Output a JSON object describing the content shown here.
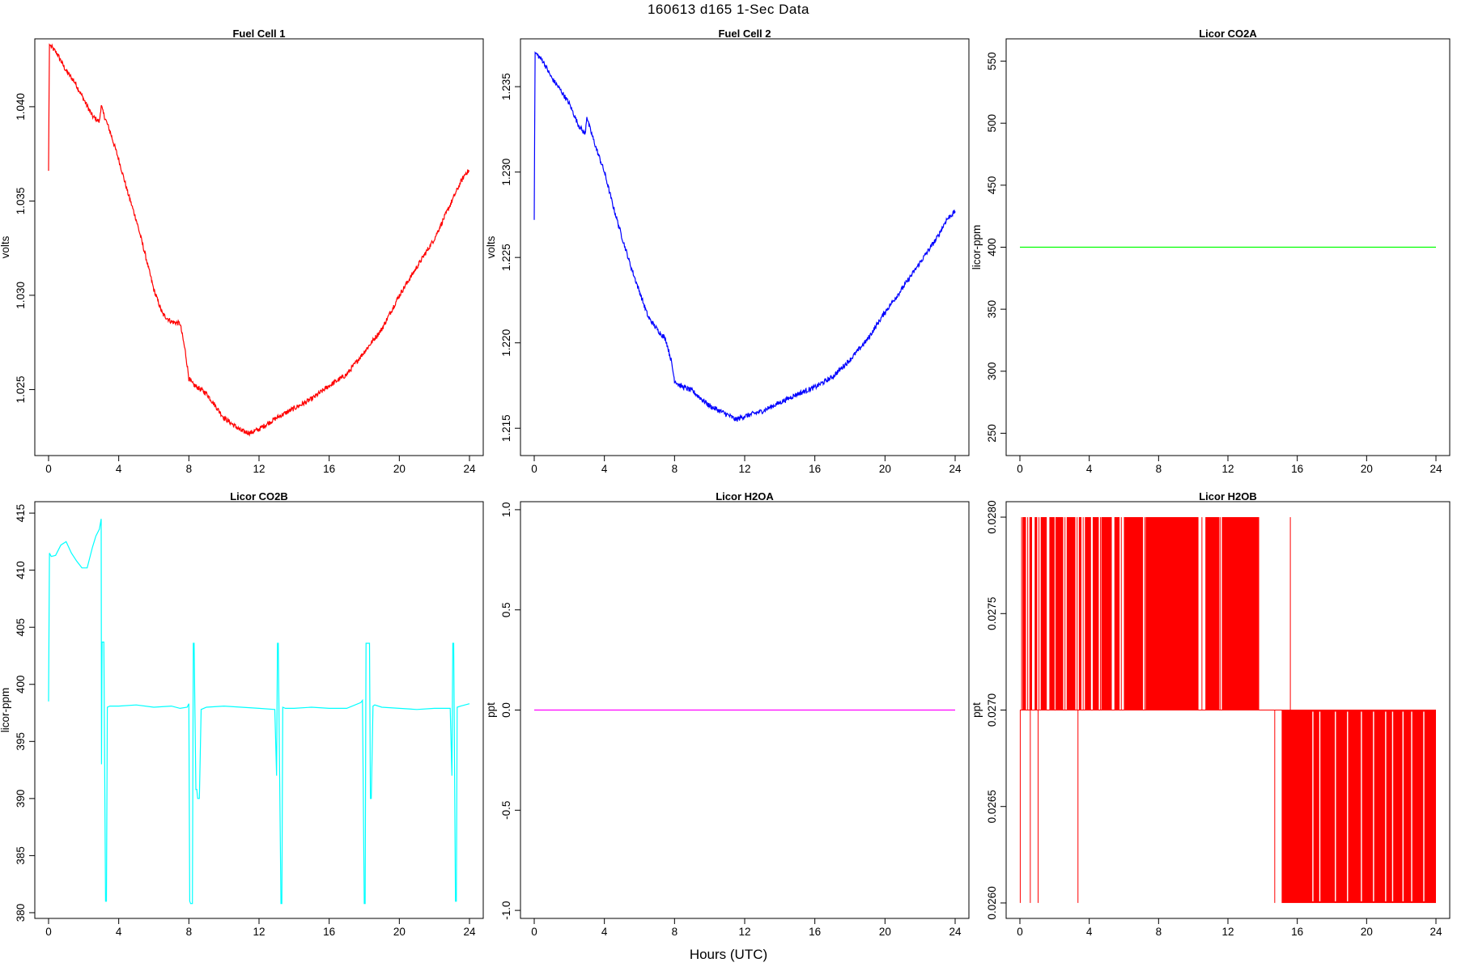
{
  "figure": {
    "title": "160613   d165   1-Sec Data",
    "xlabel": "Hours (UTC)"
  },
  "chart_data": [
    {
      "type": "line",
      "title": "Fuel Cell 1",
      "xlabel": "",
      "ylabel": "volts",
      "color": "#ff0000",
      "xlim": [
        0,
        24
      ],
      "ylim": [
        1.0215,
        1.0436
      ],
      "xticks": [
        0,
        4,
        8,
        12,
        16,
        20,
        24
      ],
      "yticks": [
        1.025,
        1.03,
        1.035,
        1.04
      ],
      "ytick_labels": [
        "1.025",
        "1.030",
        "1.035",
        "1.040"
      ],
      "series": [
        {
          "x": [
            0,
            0.05,
            0.5,
            1,
            1.5,
            2,
            2.5,
            2.9,
            3.0,
            3.1,
            3.5,
            4,
            4.5,
            5,
            5.5,
            6,
            6.5,
            7,
            7.5,
            7.8,
            8,
            8.2,
            9,
            10,
            11,
            11.5,
            12,
            13,
            14,
            15,
            16,
            17,
            18,
            19,
            20,
            21,
            22,
            23,
            23.5,
            23.8,
            24
          ],
          "y": [
            1.0366,
            1.0433,
            1.0428,
            1.0419,
            1.0413,
            1.0404,
            1.0395,
            1.0392,
            1.0401,
            1.0397,
            1.0387,
            1.0372,
            1.0355,
            1.034,
            1.0322,
            1.0303,
            1.029,
            1.0286,
            1.0285,
            1.027,
            1.0256,
            1.0253,
            1.0248,
            1.0235,
            1.0228,
            1.0227,
            1.0229,
            1.0235,
            1.024,
            1.0245,
            1.0252,
            1.0258,
            1.027,
            1.0282,
            1.03,
            1.0315,
            1.033,
            1.035,
            1.036,
            1.0365,
            1.0366
          ]
        }
      ]
    },
    {
      "type": "line",
      "title": "Fuel Cell 2",
      "xlabel": "",
      "ylabel": "volts",
      "color": "#0000ff",
      "xlim": [
        0,
        24
      ],
      "ylim": [
        1.2134,
        1.2378
      ],
      "xticks": [
        0,
        4,
        8,
        12,
        16,
        20,
        24
      ],
      "yticks": [
        1.215,
        1.22,
        1.225,
        1.23,
        1.235
      ],
      "ytick_labels": [
        "1.215",
        "1.220",
        "1.225",
        "1.230",
        "1.235"
      ],
      "series": [
        {
          "x": [
            0,
            0.05,
            0.5,
            1,
            1.5,
            2,
            2.5,
            2.9,
            3.0,
            3.1,
            3.5,
            4,
            4.5,
            5,
            5.5,
            6,
            6.5,
            7,
            7.5,
            7.8,
            8,
            8.3,
            9,
            10,
            11,
            11.5,
            12,
            13,
            14,
            15,
            16,
            17,
            18,
            19,
            20,
            21,
            22,
            23,
            23.5,
            24
          ],
          "y": [
            1.2272,
            1.237,
            1.2365,
            1.2355,
            1.2348,
            1.234,
            1.2328,
            1.2322,
            1.2333,
            1.2328,
            1.2315,
            1.23,
            1.228,
            1.2262,
            1.2245,
            1.223,
            1.2215,
            1.2208,
            1.2202,
            1.219,
            1.2178,
            1.2175,
            1.2172,
            1.2163,
            1.2158,
            1.2155,
            1.2157,
            1.216,
            1.2165,
            1.217,
            1.2174,
            1.218,
            1.219,
            1.2202,
            1.2218,
            1.2232,
            1.2247,
            1.2262,
            1.2272,
            1.2277
          ]
        }
      ]
    },
    {
      "type": "line",
      "title": "Licor CO2A",
      "xlabel": "",
      "ylabel": "licor-ppm",
      "color": "#00ff00",
      "xlim": [
        0,
        24
      ],
      "ylim": [
        232,
        568
      ],
      "xticks": [
        0,
        4,
        8,
        12,
        16,
        20,
        24
      ],
      "yticks": [
        250,
        300,
        350,
        400,
        450,
        500,
        550
      ],
      "ytick_labels": [
        "250",
        "300",
        "350",
        "400",
        "450",
        "500",
        "550"
      ],
      "series": [
        {
          "x": [
            0,
            24
          ],
          "y": [
            400,
            400
          ]
        }
      ]
    },
    {
      "type": "line",
      "title": "Licor CO2B",
      "xlabel": "",
      "ylabel": "licor-ppm",
      "color": "#00ffff",
      "xlim": [
        0,
        24
      ],
      "ylim": [
        379.5,
        416.0
      ],
      "xticks": [
        0,
        4,
        8,
        12,
        16,
        20,
        24
      ],
      "yticks": [
        380,
        385,
        390,
        395,
        400,
        405,
        410,
        415
      ],
      "ytick_labels": [
        "380",
        "385",
        "390",
        "395",
        "400",
        "405",
        "410",
        "415"
      ],
      "series": [
        {
          "x": [
            0,
            0.05,
            0.15,
            0.4,
            0.7,
            1.0,
            1.3,
            1.6,
            1.9,
            2.2,
            2.5,
            2.7,
            2.9,
            3.0,
            3.02,
            3.05,
            3.15,
            3.25,
            3.3,
            3.35,
            3.5,
            4,
            5,
            6,
            7,
            7.5,
            7.9,
            8.0,
            8.05,
            8.1,
            8.2,
            8.25,
            8.3,
            8.4,
            8.45,
            8.5,
            8.6,
            8.7,
            9,
            10,
            11,
            12,
            12.9,
            13.0,
            13.05,
            13.1,
            13.25,
            13.3,
            13.35,
            13.5,
            14,
            15,
            16,
            17,
            17.8,
            17.9,
            18.0,
            18.05,
            18.1,
            18.3,
            18.35,
            18.4,
            18.5,
            18.6,
            19,
            20,
            21,
            22,
            22.9,
            23.0,
            23.05,
            23.1,
            23.2,
            23.25,
            23.3,
            23.5,
            24
          ],
          "y": [
            398.5,
            411.5,
            411.2,
            411.3,
            412.2,
            412.5,
            411.5,
            410.8,
            410.2,
            410.2,
            412.0,
            413.0,
            413.6,
            414.5,
            393.0,
            403.7,
            403.7,
            381.0,
            381.0,
            398.0,
            398.1,
            398.1,
            398.2,
            398.0,
            398.1,
            397.9,
            398.0,
            398.3,
            381.0,
            380.8,
            380.8,
            403.6,
            403.6,
            390.8,
            390.8,
            390.0,
            390.0,
            397.8,
            398.0,
            398.1,
            398.0,
            397.9,
            397.8,
            392.0,
            403.6,
            403.6,
            380.8,
            380.8,
            398.0,
            397.9,
            397.9,
            398.0,
            397.9,
            397.9,
            398.4,
            398.6,
            380.8,
            380.8,
            403.6,
            403.6,
            390.0,
            390.0,
            398.1,
            398.2,
            398.0,
            397.9,
            397.8,
            397.9,
            397.9,
            392.0,
            403.6,
            403.6,
            381.0,
            381.0,
            398.0,
            398.1,
            398.3
          ]
        }
      ]
    },
    {
      "type": "line",
      "title": "Licor H2OA",
      "xlabel": "",
      "ylabel": "ppt",
      "color": "#ff00ff",
      "xlim": [
        0,
        24
      ],
      "ylim": [
        -1.04,
        1.04
      ],
      "xticks": [
        0,
        4,
        8,
        12,
        16,
        20,
        24
      ],
      "yticks": [
        -1.0,
        -0.5,
        0.0,
        0.5,
        1.0
      ],
      "ytick_labels": [
        "-1.0",
        "-0.5",
        "0.0",
        "0.5",
        "1.0"
      ],
      "series": [
        {
          "x": [
            0,
            24
          ],
          "y": [
            0.0,
            0.0
          ]
        }
      ]
    },
    {
      "type": "line",
      "title": "Licor H2OB",
      "xlabel": "",
      "ylabel": "ppt",
      "color": "#ff0000",
      "xlim": [
        0,
        24
      ],
      "ylim": [
        0.02592,
        0.02808
      ],
      "xticks": [
        0,
        4,
        8,
        12,
        16,
        20,
        24
      ],
      "yticks": [
        0.026,
        0.0265,
        0.027,
        0.0275,
        0.028
      ],
      "ytick_labels": [
        "0.0260",
        "0.0265",
        "0.0270",
        "0.0275",
        "0.0280"
      ],
      "levels": [
        0.026,
        0.027,
        0.028
      ],
      "high_blocks": [
        [
          0.15,
          0.35
        ],
        [
          0.55,
          0.7
        ],
        [
          0.85,
          1.0
        ],
        [
          1.2,
          1.55
        ],
        [
          1.7,
          2.0
        ],
        [
          2.05,
          2.5
        ],
        [
          2.7,
          3.2
        ],
        [
          3.4,
          3.55
        ],
        [
          3.75,
          4.1
        ],
        [
          4.2,
          4.55
        ],
        [
          4.7,
          5.3
        ],
        [
          5.45,
          5.75
        ],
        [
          6.0,
          7.1
        ],
        [
          7.25,
          10.3
        ],
        [
          10.7,
          11.5
        ],
        [
          11.65,
          13.8
        ]
      ],
      "high_ticks": [
        0.1,
        0.45,
        1.1,
        2.6,
        3.3,
        3.65,
        4.65,
        5.85,
        7.2,
        10.5,
        11.55,
        15.6
      ],
      "low_block": [
        15.1,
        24.0
      ],
      "low_ticks": [
        0.02,
        0.6,
        1.05,
        3.35,
        14.7
      ],
      "mid_gaps": [
        16.9,
        17.3,
        18.2,
        18.9,
        19.7,
        20.4,
        21.1,
        21.5,
        22.1,
        22.6,
        23.3
      ]
    }
  ]
}
